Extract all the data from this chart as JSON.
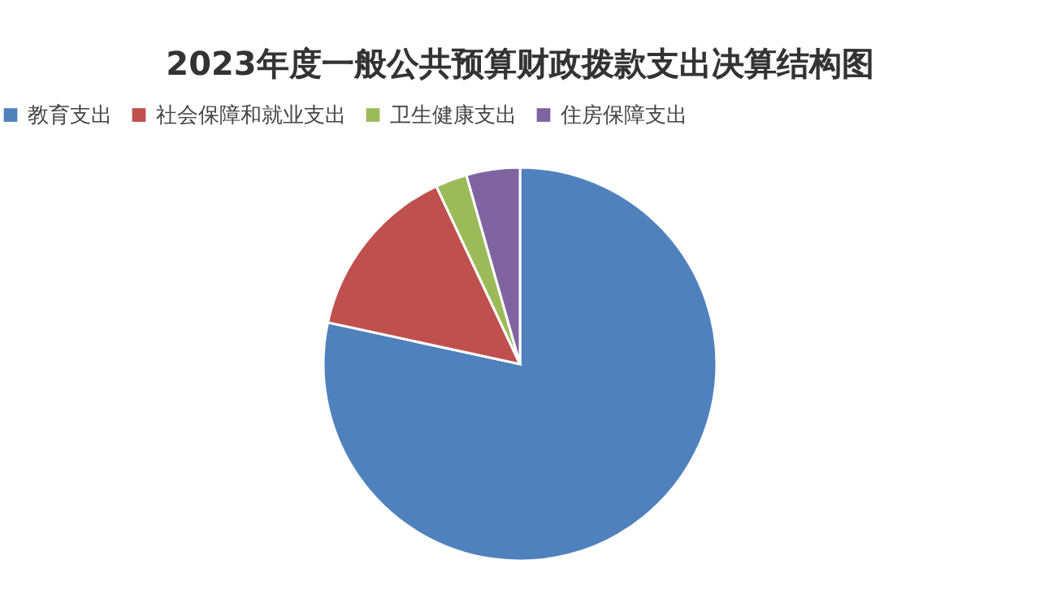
{
  "chart_data": {
    "type": "pie",
    "title": "2023年度一般公共预算财政拨款支出决算结构图",
    "categories": [
      "教育支出",
      "社会保障和就业支出",
      "卫生健康支出",
      "住房保障支出"
    ],
    "values": [
      78.4,
      14.6,
      2.6,
      4.4
    ],
    "colors": [
      "#4f81bd",
      "#c0504d",
      "#9bbb59",
      "#8064a2"
    ],
    "legend": "top"
  }
}
